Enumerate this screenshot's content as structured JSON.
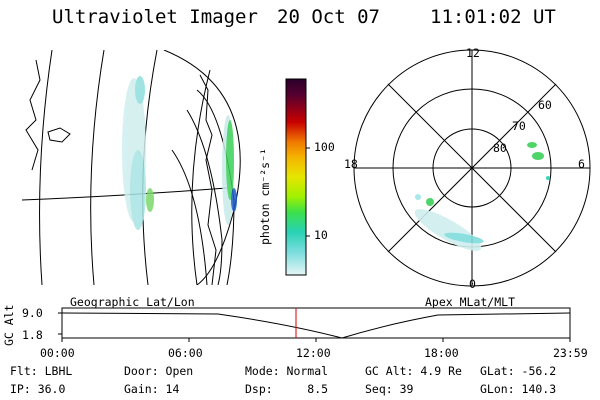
{
  "header": {
    "instrument": "Ultraviolet Imager",
    "date": "20 Oct 07",
    "time": "11:01:02 UT"
  },
  "left_panel": {
    "label": "Geographic Lat/Lon"
  },
  "right_panel": {
    "label": "Apex MLat/MLT",
    "lat_labels": [
      "80",
      "70",
      "60"
    ],
    "mlt_labels": [
      "12",
      "18",
      "6",
      "0"
    ]
  },
  "colorbar": {
    "unit_label": "photon cm⁻²s⁻¹",
    "tick_labels": [
      "100",
      "10"
    ],
    "colors": [
      "#2a002a",
      "#550030",
      "#8c0000",
      "#c80000",
      "#e23c00",
      "#f07800",
      "#f5b400",
      "#e6e600",
      "#a0f000",
      "#3ce04a",
      "#28d2b4",
      "#78dcdc",
      "#b4eaea",
      "#e6f6f6"
    ]
  },
  "altitude_strip": {
    "axis_label": "GC Alt",
    "ytick_labels": [
      "9.0",
      "1.8"
    ],
    "xtick_labels": [
      "00:00",
      "06:00",
      "12:00",
      "18:00",
      "23:59"
    ],
    "current_marker_color": "#d40000"
  },
  "info": {
    "flt": "Flt: LBHL",
    "ip": "IP: 36.0",
    "door": "Door: Open",
    "gain": "Gain: 14",
    "mode": "Mode: Normal",
    "dsp": "Dsp:     8.5",
    "gc_alt": "GC Alt: 4.9 Re",
    "seq": "Seq: 39",
    "glat": "GLat: -56.2",
    "glon": "GLon: 140.3"
  }
}
